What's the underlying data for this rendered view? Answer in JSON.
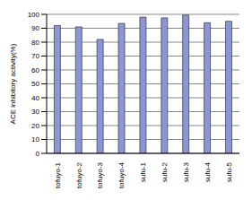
{
  "chart_data": {
    "type": "bar",
    "y_label": "ACE inhibitory activity(%)",
    "categories": [
      "tofuyo-1",
      "tofuyo-2",
      "tofuyo-3",
      "tofuyo-4",
      "sufu-1",
      "sufu-2",
      "sufu-3",
      "sufu-4",
      "sufu-5"
    ],
    "values": [
      92,
      91,
      82,
      93.5,
      98,
      97.5,
      99.5,
      94,
      95
    ],
    "color": "#8c96d6",
    "ylim": [
      0,
      100
    ],
    "yticks": [
      0,
      10,
      20,
      30,
      40,
      50,
      60,
      70,
      80,
      90,
      100
    ],
    "grid": true
  }
}
